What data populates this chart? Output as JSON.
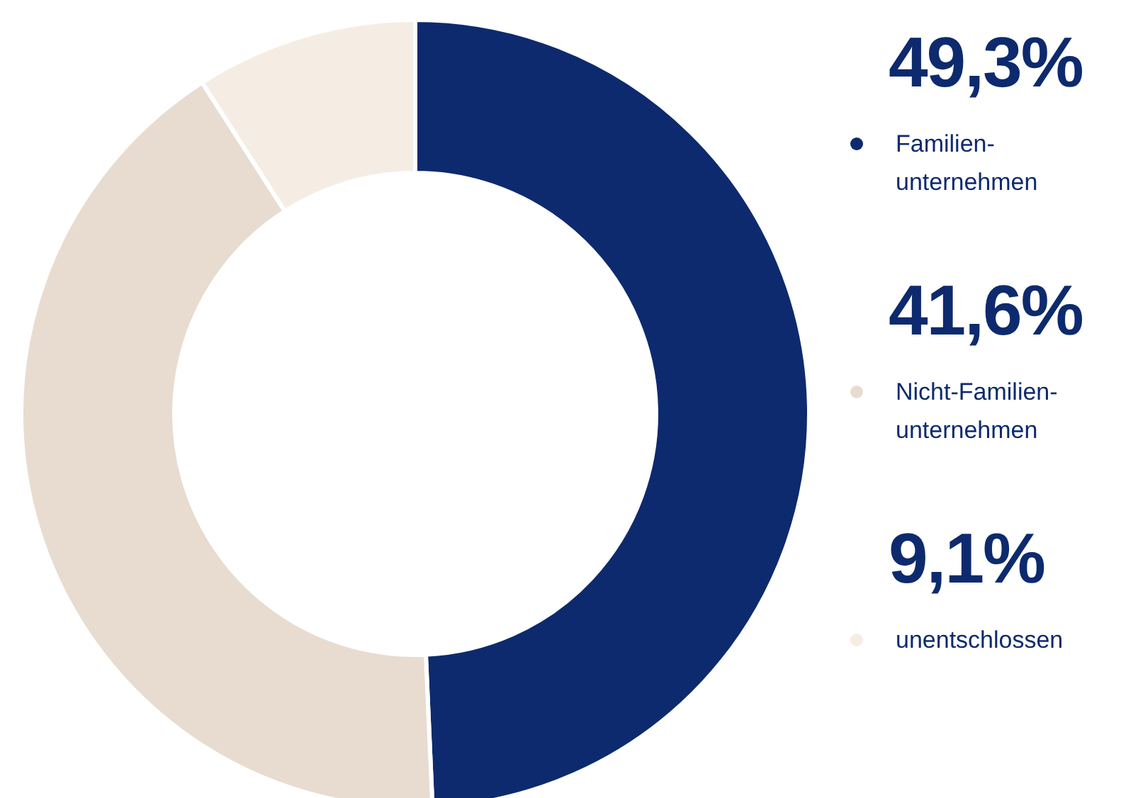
{
  "chart_data": {
    "type": "donut",
    "categories": [
      "Familien-unternehmen",
      "Nicht-Familien-unternehmen",
      "unentschlossen"
    ],
    "values": [
      49.3,
      41.6,
      9.1
    ],
    "value_labels": [
      "49,3%",
      "41,6%",
      "9,1%"
    ],
    "colors": [
      "#0d2a6e",
      "#e8dcd0",
      "#f5ede4"
    ],
    "legend": "right"
  }
}
